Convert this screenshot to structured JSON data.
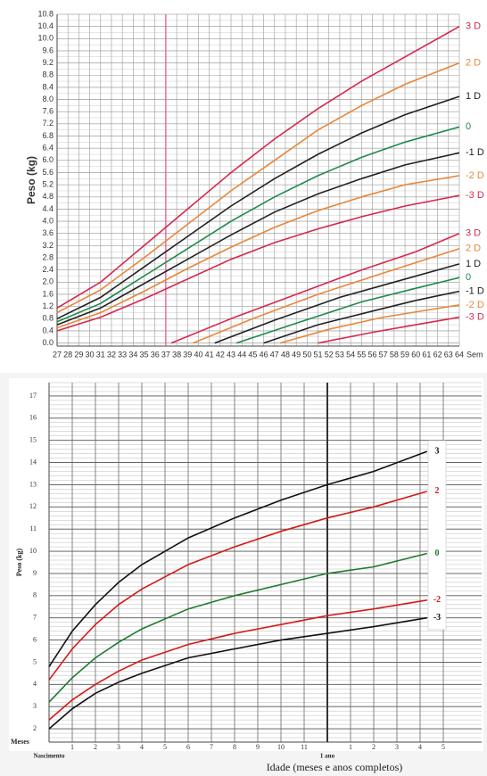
{
  "chart_data": [
    {
      "type": "line",
      "y_label": "Peso (kg)",
      "x_label": "Sem",
      "xlim": [
        27,
        64
      ],
      "ylim": [
        -0.1,
        10.8
      ],
      "xticks": [
        27,
        28,
        29,
        30,
        31,
        32,
        33,
        34,
        35,
        36,
        37,
        38,
        39,
        40,
        41,
        42,
        43,
        44,
        45,
        46,
        47,
        48,
        49,
        50,
        51,
        52,
        53,
        54,
        55,
        56,
        57,
        58,
        59,
        60,
        61,
        62,
        63,
        64
      ],
      "yticks": [
        {
          "value": 0,
          "label": "0.0"
        },
        0.4,
        0.8,
        1.2,
        1.6,
        {
          "value": 2,
          "label": "2.0"
        },
        2.4,
        2.8,
        3.2,
        3.6,
        {
          "value": 4,
          "label": "4.0"
        },
        4.4,
        4.8,
        5.2,
        5.6,
        {
          "value": 6,
          "label": "6.0"
        },
        6.4,
        6.8,
        7.2,
        7.6,
        {
          "value": 8,
          "label": "8.0"
        },
        8.4,
        8.8,
        9.2,
        9.6,
        {
          "value": 10,
          "label": "10.0"
        },
        10.4,
        10.8
      ],
      "reference_line": 37,
      "reference_color": "#e0508a",
      "grid": true,
      "x": [
        27,
        31,
        35,
        39,
        43,
        47,
        51,
        55,
        59,
        64
      ],
      "series": [
        {
          "name": "3 D",
          "color": "#d6284f",
          "values": [
            1.15,
            2.0,
            3.2,
            4.4,
            5.6,
            6.7,
            7.7,
            8.6,
            9.4,
            10.4
          ]
        },
        {
          "name": "2 D",
          "color": "#e8873a",
          "values": [
            1.0,
            1.75,
            2.8,
            3.9,
            5.0,
            6.0,
            7.0,
            7.8,
            8.5,
            9.2
          ]
        },
        {
          "name": "1 D",
          "color": "#222222",
          "values": [
            0.8,
            1.5,
            2.5,
            3.5,
            4.5,
            5.4,
            6.2,
            6.9,
            7.5,
            8.1
          ]
        },
        {
          "name": "0",
          "color": "#1e8a4c",
          "values": [
            0.7,
            1.3,
            2.2,
            3.1,
            4.0,
            4.8,
            5.5,
            6.1,
            6.6,
            7.1
          ]
        },
        {
          "name": "-1 D",
          "color": "#222222",
          "values": [
            0.6,
            1.15,
            1.95,
            2.75,
            3.55,
            4.3,
            4.9,
            5.4,
            5.85,
            6.25
          ]
        },
        {
          "name": "-2 D",
          "color": "#e8873a",
          "values": [
            0.5,
            1.0,
            1.7,
            2.45,
            3.15,
            3.8,
            4.35,
            4.8,
            5.2,
            5.5
          ]
        },
        {
          "name": "-3 D",
          "color": "#d6284f",
          "values": [
            0.4,
            0.85,
            1.45,
            2.1,
            2.75,
            3.3,
            3.75,
            4.15,
            4.5,
            4.85
          ]
        },
        {
          "name": "3 D",
          "color": "#d6284f",
          "x": [
            37.5,
            43,
            49,
            55,
            60,
            64
          ],
          "values": [
            0,
            0.8,
            1.6,
            2.4,
            3.0,
            3.6
          ]
        },
        {
          "name": "2 D",
          "color": "#e8873a",
          "x": [
            39.5,
            45,
            51,
            57,
            64
          ],
          "values": [
            0,
            0.8,
            1.6,
            2.3,
            3.1
          ]
        },
        {
          "name": "1 D",
          "color": "#222222",
          "x": [
            41.5,
            47,
            53,
            58,
            64
          ],
          "values": [
            0,
            0.75,
            1.5,
            2.0,
            2.6
          ]
        },
        {
          "name": "0",
          "color": "#1e8a4c",
          "x": [
            43.5,
            49,
            55,
            60,
            64
          ],
          "values": [
            0,
            0.65,
            1.35,
            1.8,
            2.15
          ]
        },
        {
          "name": "-1 D",
          "color": "#222222",
          "x": [
            46,
            51,
            56,
            60,
            64
          ],
          "values": [
            0,
            0.6,
            1.05,
            1.4,
            1.7
          ]
        },
        {
          "name": "-2 D",
          "color": "#e8873a",
          "x": [
            47.5,
            52,
            57,
            64
          ],
          "values": [
            0,
            0.45,
            0.85,
            1.25
          ]
        },
        {
          "name": "-3 D",
          "color": "#d6284f",
          "x": [
            51,
            56,
            60,
            64
          ],
          "values": [
            0,
            0.35,
            0.6,
            0.85
          ]
        }
      ]
    },
    {
      "type": "line",
      "y_label": "Peso (kg)",
      "x_label": "Idade (meses e anos completos)",
      "x_row_label": "Meses",
      "xlim": [
        0,
        17
      ],
      "ylim": [
        1.4,
        17.6
      ],
      "xticks": [
        1,
        2,
        3,
        4,
        5,
        6,
        7,
        8,
        9,
        10,
        11,
        {
          "value": 13,
          "label": "1"
        },
        {
          "value": 14,
          "label": "2"
        },
        {
          "value": 15,
          "label": "3"
        },
        {
          "value": 16,
          "label": "4"
        },
        {
          "value": 17,
          "label": "5"
        }
      ],
      "xticks_secondary": [
        {
          "value": 0,
          "label": "Nascimento"
        },
        {
          "value": 12,
          "label": "1 ano"
        }
      ],
      "yticks": [
        2,
        3,
        4,
        5,
        6,
        7,
        8,
        9,
        10,
        11,
        12,
        13,
        14,
        15,
        16,
        17
      ],
      "reference_line": 12,
      "reference_color": "#333333",
      "grid": true,
      "x": [
        0,
        1,
        2,
        3,
        4,
        6,
        8,
        10,
        12,
        14,
        16.3
      ],
      "series": [
        {
          "name": "3",
          "color": "#111111",
          "values": [
            4.8,
            6.4,
            7.6,
            8.6,
            9.4,
            10.6,
            11.5,
            12.3,
            13.0,
            13.6,
            14.5
          ]
        },
        {
          "name": "2",
          "color": "#d41a1a",
          "values": [
            4.2,
            5.6,
            6.7,
            7.6,
            8.3,
            9.4,
            10.2,
            10.9,
            11.5,
            12.0,
            12.7
          ]
        },
        {
          "name": "0",
          "color": "#1e7a2e",
          "values": [
            3.2,
            4.3,
            5.2,
            5.9,
            6.5,
            7.4,
            8.0,
            8.5,
            9.0,
            9.3,
            9.9
          ]
        },
        {
          "name": "-2",
          "color": "#d41a1a",
          "values": [
            2.4,
            3.3,
            4.0,
            4.6,
            5.1,
            5.8,
            6.3,
            6.7,
            7.1,
            7.4,
            7.8
          ]
        },
        {
          "name": "-3",
          "color": "#111111",
          "values": [
            2.0,
            2.9,
            3.6,
            4.1,
            4.5,
            5.2,
            5.6,
            6.0,
            6.3,
            6.6,
            7.0
          ]
        }
      ]
    }
  ]
}
